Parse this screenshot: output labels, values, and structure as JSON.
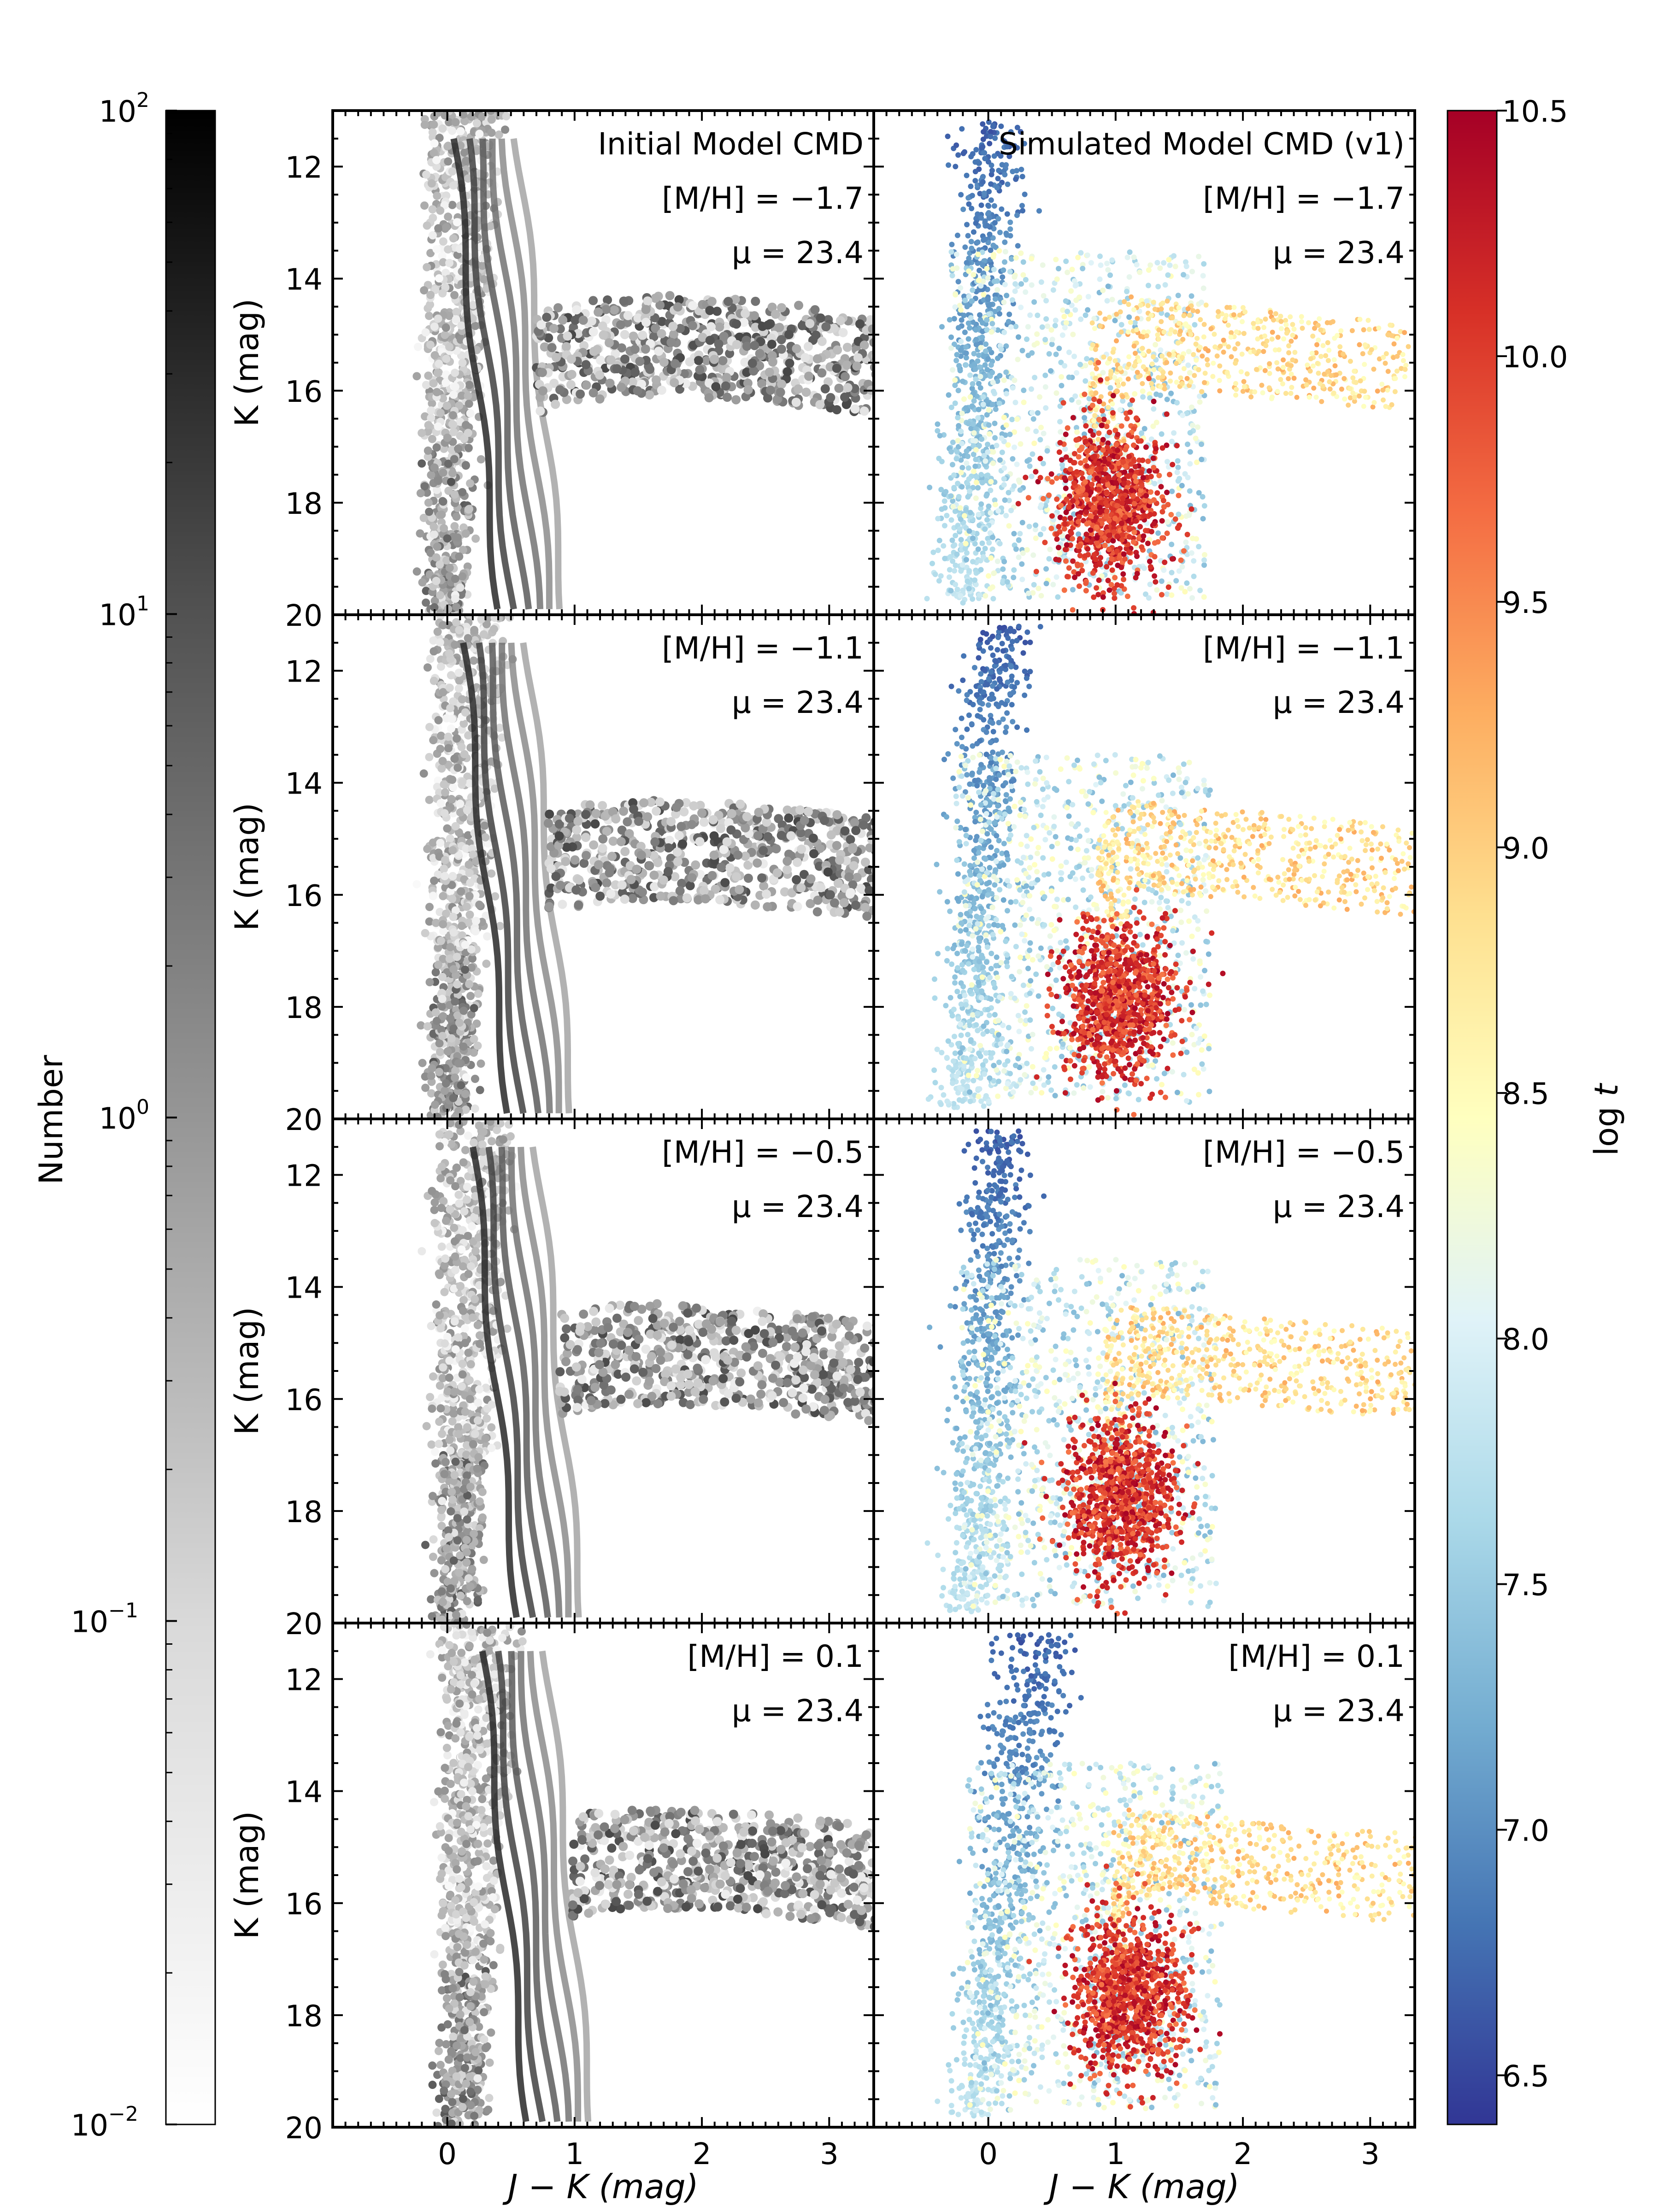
{
  "figure": {
    "colorbar_left": {
      "label": "Number",
      "tick_labels": [
        {
          "base": "10",
          "exp": "2",
          "value": 100
        },
        {
          "base": "10",
          "exp": "1",
          "value": 10
        },
        {
          "base": "10",
          "exp": "0",
          "value": 1
        },
        {
          "base": "10",
          "exp": "−1",
          "value": 0.1
        },
        {
          "base": "10",
          "exp": "−2",
          "value": 0.01
        }
      ],
      "scale": "log",
      "colormap": "greys"
    },
    "colorbar_right": {
      "label": "log t",
      "tick_labels": [
        "10.5",
        "10.0",
        "9.5",
        "9.0",
        "8.5",
        "8.0",
        "7.5",
        "7.0",
        "6.5"
      ],
      "range": [
        6.4,
        10.5
      ],
      "colormap": "RdYlBu_r",
      "colors": [
        "#313695",
        "#4575b4",
        "#74add1",
        "#abd9e9",
        "#e0f3f8",
        "#ffffbf",
        "#fee090",
        "#fdae61",
        "#f46d43",
        "#d73027",
        "#a50026"
      ]
    },
    "xlabel": "J − K (mag)",
    "ylabel": "K (mag)",
    "column_titles": [
      "Initial Model CMD",
      "Simulated Model CMD (v1)"
    ],
    "rows": [
      {
        "metallicity": "[M/H] = −1.7",
        "mu": "μ = 23.4",
        "MH": -1.7
      },
      {
        "metallicity": "[M/H] = −1.1",
        "mu": "μ = 23.4",
        "MH": -1.1
      },
      {
        "metallicity": "[M/H] = −0.5",
        "mu": "μ = 23.4",
        "MH": -0.5
      },
      {
        "metallicity": "[M/H] = 0.1",
        "mu": "μ = 23.4",
        "MH": 0.1
      }
    ]
  },
  "chart_data": {
    "type": "scatter",
    "layout": "4 rows x 2 columns of color-magnitude diagrams",
    "xlim": [
      -0.9,
      3.35
    ],
    "ylim": [
      20,
      11
    ],
    "x_ticks": [
      0,
      1,
      2,
      3
    ],
    "y_ticks": [
      12,
      14,
      16,
      18,
      20
    ],
    "x_tick_labels": [
      "0",
      "1",
      "2",
      "3"
    ],
    "y_tick_labels": [
      "12",
      "14",
      "16",
      "18",
      "20"
    ],
    "left_column_color": "Number (log, 0.01–100)",
    "right_column_color": "log t (6.4–10.5)",
    "features": {
      "main_sequence_blue": {
        "jk": [
          -0.3,
          0.6
        ],
        "k": [
          11,
          19.8
        ],
        "log_t": 6.6
      },
      "red_giant_clump": {
        "jk_center": 1.0,
        "k_center": 18.2,
        "log_t": 10.2
      },
      "agb_tail": {
        "jk": [
          0.8,
          3.3
        ],
        "k": [
          14,
          16.5
        ],
        "log_t": 9.0
      }
    }
  }
}
